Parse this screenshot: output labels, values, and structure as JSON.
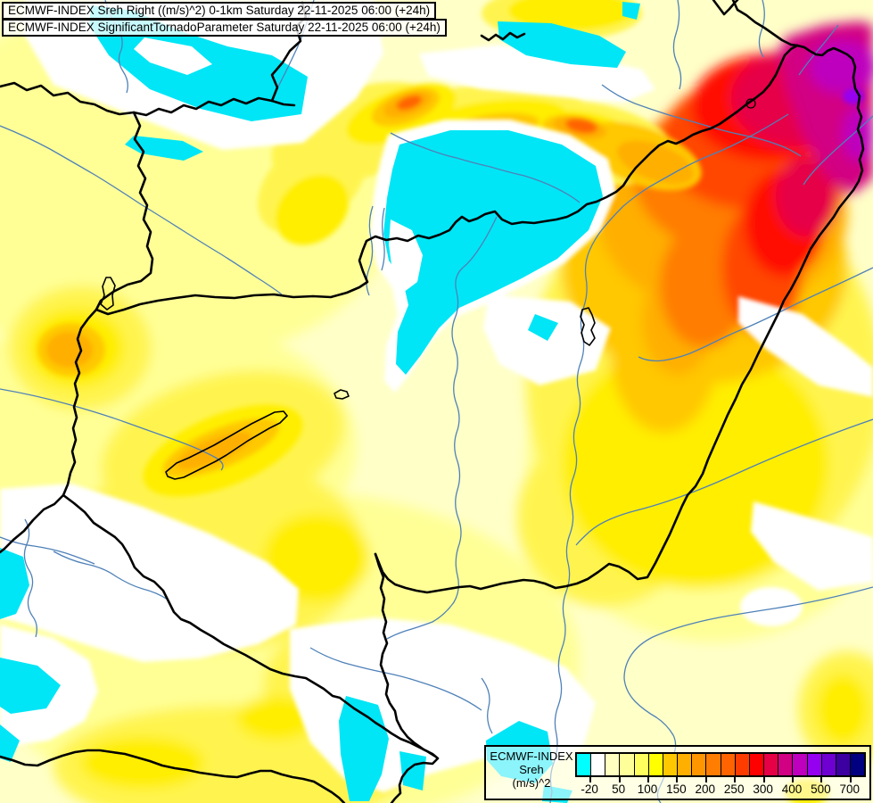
{
  "titles": {
    "line1": "ECMWF-INDEX Sreh Right ((m/s)^2) 0-1km Saturday 22-11-2025 06:00 (+24h)",
    "line2": "ECMWF-INDEX SignificantTornadoParameter Saturday 22-11-2025 06:00 (+24h)"
  },
  "legend": {
    "product": "ECMWF-INDEX",
    "parameter": "Sreh",
    "units": "(m/s)^2",
    "tick_labels": [
      "-20",
      "50",
      "100",
      "150",
      "200",
      "250",
      "300",
      "400",
      "500",
      "700"
    ],
    "colorbar_colors": [
      "#00FFFF",
      "#FFFFFF",
      "#FFFFC0",
      "#FFFF99",
      "#FFFF5E",
      "#FFFF00",
      "#FFC800",
      "#FFAF00",
      "#FF9600",
      "#FF7D00",
      "#FF6400",
      "#FF3C00",
      "#FF0000",
      "#E60046",
      "#D20082",
      "#BE00BE",
      "#9600F0",
      "#6E00D2",
      "#3C00A0",
      "#000080"
    ]
  },
  "map_colors": {
    "background": "#FFFFC8",
    "negative_cyan": "#00E6F6",
    "white_band": "#FFFFFF",
    "country_border": "#000000",
    "river": "#4F81B8",
    "lake_outline": "#000000"
  }
}
